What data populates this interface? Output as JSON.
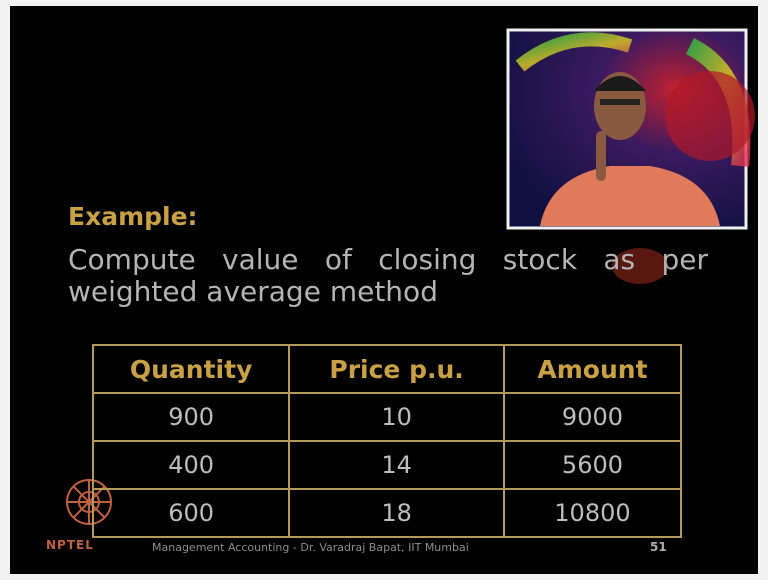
{
  "heading": "Example:",
  "paragraph": [
    "Compute value of closing stock as per",
    "weighted average method"
  ],
  "table": {
    "header": [
      "Quantity",
      "Price p.u.",
      "Amount"
    ],
    "rows": [
      [
        900,
        10,
        9000
      ],
      [
        400,
        14,
        5600
      ],
      [
        600,
        18,
        10800
      ]
    ]
  },
  "footer": {
    "logo": "NPTEL",
    "text": "Management Accounting - Dr. Varadraj Bapat, IIT Mumbai",
    "page": "51"
  }
}
